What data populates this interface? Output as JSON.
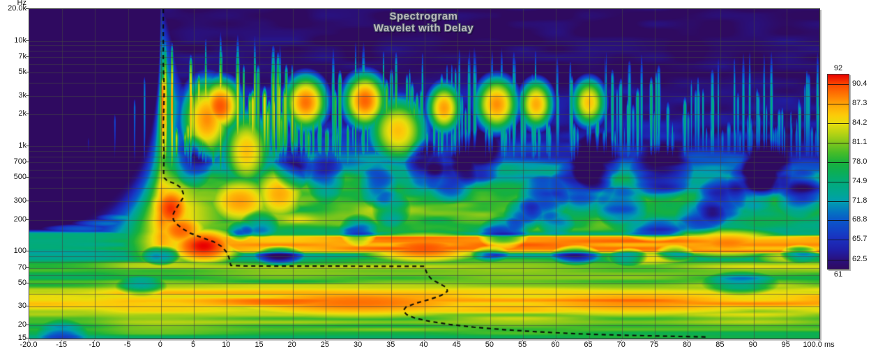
{
  "title": {
    "line1": "Spectrogram",
    "line2": "Wavelet with Delay"
  },
  "axes": {
    "x": {
      "unit": "ms",
      "min": -20,
      "max": 100,
      "grid_step_ms": 5,
      "tick_values": [
        -20,
        -15,
        -10,
        -5,
        0,
        5,
        10,
        15,
        20,
        25,
        30,
        35,
        40,
        45,
        50,
        55,
        60,
        65,
        70,
        75,
        80,
        85,
        90,
        95,
        100
      ],
      "tick_labels": [
        "-20.0",
        "-15",
        "-10",
        "-5",
        "0",
        "5",
        "10",
        "15",
        "20",
        "25",
        "30",
        "35",
        "40",
        "45",
        "50",
        "55",
        "60",
        "65",
        "70",
        "75",
        "80",
        "85",
        "90",
        "95",
        "100.0 ms"
      ]
    },
    "y": {
      "unit_label": "Hz",
      "min_hz": 15,
      "max_hz": 20000,
      "scale": "log",
      "tick_values": [
        20000,
        10000,
        7000,
        5000,
        3000,
        2000,
        1000,
        700,
        500,
        300,
        200,
        100,
        70,
        50,
        30,
        20,
        15
      ],
      "tick_labels": [
        "20.0k",
        "10k",
        "7k",
        "5k",
        "3k",
        "2k",
        "1k",
        "700",
        "500",
        "300",
        "200",
        "100",
        "70",
        "50",
        "30",
        "20",
        "15"
      ],
      "grid_lines_hz": [
        20,
        30,
        40,
        50,
        60,
        70,
        80,
        90,
        100,
        200,
        300,
        400,
        500,
        600,
        700,
        800,
        900,
        1000,
        2000,
        3000,
        4000,
        5000,
        6000,
        7000,
        8000,
        9000,
        10000
      ]
    }
  },
  "colorbar": {
    "max_label": "92",
    "min_label": "61",
    "min_db": 61,
    "max_db": 92,
    "tick_levels_db": [
      90.4,
      87.3,
      84.2,
      81.1,
      78.0,
      74.9,
      71.8,
      68.8,
      65.7,
      62.5
    ],
    "tick_labels": [
      "90.4",
      "87.3",
      "84.2",
      "81.1",
      "78.0",
      "74.9",
      "71.8",
      "68.8",
      "65.7",
      "62.5"
    ]
  },
  "palette_db_hex": [
    [
      61,
      "#2f0a60"
    ],
    [
      62.5,
      "#29117e"
    ],
    [
      64,
      "#1f1fa8"
    ],
    [
      65.7,
      "#1b2fbe"
    ],
    [
      67,
      "#1341c6"
    ],
    [
      68.8,
      "#0a58c8"
    ],
    [
      70,
      "#0472c2"
    ],
    [
      71.8,
      "#009fae"
    ],
    [
      73,
      "#00a694"
    ],
    [
      74.9,
      "#02ab78"
    ],
    [
      76.5,
      "#0cae54"
    ],
    [
      78,
      "#19b13b"
    ],
    [
      79.5,
      "#46bc28"
    ],
    [
      81.1,
      "#7fc61c"
    ],
    [
      82.5,
      "#b3d214"
    ],
    [
      84.2,
      "#e8de0c"
    ],
    [
      85.5,
      "#fccb08"
    ],
    [
      87.3,
      "#ffa406"
    ],
    [
      88.5,
      "#ff7e03"
    ],
    [
      90.4,
      "#fc4a00"
    ],
    [
      92,
      "#e90000"
    ]
  ],
  "chart_data": {
    "type": "heatmap",
    "subtype": "wavelet-spectrogram-with-delay",
    "title": "Spectrogram",
    "subtitle": "Wavelet with Delay",
    "x": {
      "label": "ms",
      "range": [
        -20,
        100
      ]
    },
    "y": {
      "label": "Hz",
      "range": [
        15,
        20000
      ],
      "scale": "log"
    },
    "z": {
      "label": "dB",
      "range": [
        61,
        92
      ]
    },
    "onset_time_ms": 0,
    "delay_contour_t_f": [
      [
        0.35,
        20000
      ],
      [
        0.35,
        6000
      ],
      [
        0.5,
        3500
      ],
      [
        0.35,
        1500
      ],
      [
        0.45,
        800
      ],
      [
        0.4,
        560
      ],
      [
        0.5,
        500
      ],
      [
        1.0,
        468
      ],
      [
        2.2,
        440
      ],
      [
        3.1,
        400
      ],
      [
        3.4,
        355
      ],
      [
        3.3,
        320
      ],
      [
        2.7,
        280
      ],
      [
        2.1,
        245
      ],
      [
        1.8,
        222
      ],
      [
        1.9,
        200
      ],
      [
        2.4,
        182
      ],
      [
        3.2,
        166
      ],
      [
        4.4,
        150
      ],
      [
        6.2,
        136
      ],
      [
        8.0,
        124
      ],
      [
        9.2,
        112
      ],
      [
        9.9,
        100
      ],
      [
        10.3,
        89
      ],
      [
        10.5,
        79
      ],
      [
        10.6,
        74
      ],
      [
        13,
        73
      ],
      [
        25,
        72.8
      ],
      [
        40,
        72.5
      ],
      [
        40.2,
        67
      ],
      [
        40.5,
        60
      ],
      [
        41.2,
        54
      ],
      [
        42.5,
        49
      ],
      [
        43.4,
        45.5
      ],
      [
        43.5,
        42
      ],
      [
        42.6,
        38.5
      ],
      [
        41,
        35.5
      ],
      [
        38.8,
        32.5
      ],
      [
        37.2,
        29.8
      ],
      [
        36.8,
        27.5
      ],
      [
        37.3,
        25.3
      ],
      [
        38.6,
        23.4
      ],
      [
        40.8,
        21.8
      ],
      [
        43.8,
        20.4
      ],
      [
        47.5,
        19.2
      ],
      [
        52,
        18.2
      ],
      [
        57.5,
        17.3
      ],
      [
        63.5,
        16.6
      ],
      [
        70,
        16.1
      ],
      [
        76.5,
        15.8
      ],
      [
        83,
        15.5
      ]
    ],
    "base_level_profile_f_db": [
      [
        15,
        77.5
      ],
      [
        16.5,
        78.5
      ],
      [
        18,
        79
      ],
      [
        20,
        80
      ],
      [
        22,
        80.5
      ],
      [
        25,
        81.5
      ],
      [
        28,
        84
      ],
      [
        31,
        86.5
      ],
      [
        34,
        87.5
      ],
      [
        37,
        86.5
      ],
      [
        40,
        85.5
      ],
      [
        43,
        84
      ],
      [
        46,
        81.5
      ],
      [
        49,
        80.5
      ],
      [
        52,
        79.5
      ],
      [
        56,
        79
      ],
      [
        60,
        79.5
      ],
      [
        64,
        80.5
      ],
      [
        69,
        81.5
      ],
      [
        73,
        82
      ],
      [
        77,
        80
      ],
      [
        81,
        78
      ],
      [
        86,
        76
      ],
      [
        91,
        75
      ],
      [
        97,
        74.5
      ],
      [
        105,
        75
      ],
      [
        115,
        75.5
      ],
      [
        125,
        75
      ],
      [
        135,
        74.5
      ],
      [
        145,
        74.5
      ],
      [
        155,
        76.5
      ],
      [
        185,
        78
      ],
      [
        240,
        79
      ],
      [
        330,
        78
      ],
      [
        430,
        75.5
      ],
      [
        560,
        73
      ],
      [
        700,
        70.5
      ],
      [
        900,
        67
      ],
      [
        1100,
        65
      ],
      [
        1500,
        63.5
      ],
      [
        2200,
        62.2
      ],
      [
        3000,
        61.8
      ],
      [
        20000,
        61.3
      ]
    ],
    "onset_peak_profile_f_db": [
      [
        85,
        84
      ],
      [
        100,
        86
      ],
      [
        120,
        87
      ],
      [
        140,
        87.5
      ],
      [
        155,
        87
      ],
      [
        200,
        88.5
      ],
      [
        260,
        88.5
      ],
      [
        330,
        87
      ],
      [
        420,
        85.5
      ],
      [
        520,
        83
      ],
      [
        650,
        81
      ],
      [
        800,
        80
      ],
      [
        1000,
        80.5
      ],
      [
        1400,
        81.5
      ],
      [
        2000,
        83
      ],
      [
        2600,
        83.5
      ],
      [
        3400,
        81
      ],
      [
        4500,
        78
      ],
      [
        6000,
        75.5
      ],
      [
        8000,
        73
      ],
      [
        11000,
        70
      ],
      [
        15000,
        67
      ],
      [
        20000,
        64.5
      ]
    ],
    "onset_decay_db_per_ms_f": [
      [
        85,
        0.9
      ],
      [
        400,
        1.0
      ],
      [
        600,
        2.5
      ],
      [
        1500,
        5
      ],
      [
        20000,
        6
      ]
    ],
    "pre_ring_spread_const_hz_ms": 2500,
    "delayed_bass_band": {
      "f_lo_hz": 93,
      "f_hi_hz": 148,
      "boost_db": 12.5,
      "arrival_ms_at_hi": 4.5,
      "arrival_ms_at_lo": 10.5
    },
    "striations": {
      "seed": 11,
      "count": 250,
      "bell_center_hz": 2600,
      "f_floor_hz": 600,
      "peak_base_db": 71.5,
      "peak_onset_extra_db": 11.5,
      "time_decay_ms": 28
    },
    "pre_noise_striations_t_ftop_db": [
      [
        -16,
        900,
        67
      ],
      [
        -11,
        1400,
        68
      ],
      [
        -7,
        2200,
        69
      ],
      [
        -13.5,
        700,
        66
      ],
      [
        -4,
        3000,
        70.5
      ],
      [
        -2.5,
        5000,
        71.5
      ],
      [
        -9,
        500,
        66.5
      ],
      [
        -18,
        400,
        65.5
      ]
    ],
    "hot_blobs_t_f_rt_rf_db": [
      [
        1.5,
        255,
        3,
        0.22,
        91
      ],
      [
        6.5,
        113,
        5,
        0.16,
        92
      ],
      [
        3,
        160,
        4,
        0.18,
        89.5
      ],
      [
        12,
        300,
        5,
        0.22,
        87.5
      ],
      [
        40,
        108,
        9,
        0.14,
        90
      ],
      [
        86,
        120,
        9,
        0.13,
        88.5
      ],
      [
        30,
        33,
        26,
        0.16,
        89
      ],
      [
        72,
        33,
        30,
        0.16,
        88
      ],
      [
        18,
        350,
        4,
        0.25,
        87
      ],
      [
        9,
        2400,
        2.5,
        0.2,
        90
      ],
      [
        22,
        2600,
        2.5,
        0.2,
        89
      ],
      [
        31,
        2700,
        2.5,
        0.2,
        89.5
      ],
      [
        51,
        2500,
        2.5,
        0.2,
        88
      ],
      [
        36,
        1400,
        3.5,
        0.25,
        86
      ],
      [
        13,
        900,
        3,
        0.3,
        86
      ],
      [
        7,
        1800,
        3,
        0.3,
        88
      ],
      [
        74,
        86,
        8,
        0.1,
        84.5
      ],
      [
        95,
        88,
        6,
        0.1,
        83
      ],
      [
        -8,
        185,
        6,
        0.05,
        70
      ],
      [
        -12,
        165,
        7,
        0.05,
        69
      ],
      [
        -5,
        210,
        5,
        0.05,
        72
      ],
      [
        57,
        2500,
        2,
        0.18,
        87
      ],
      [
        43,
        2300,
        2,
        0.18,
        87.5
      ],
      [
        65,
        2600,
        2,
        0.18,
        86
      ]
    ],
    "dark_holes_t_f_rt_rf_dropdb": [
      [
        0,
        92,
        3,
        0.1,
        13
      ],
      [
        18,
        91,
        4,
        0.1,
        13
      ],
      [
        63,
        92,
        4,
        0.1,
        12
      ],
      [
        71,
        89,
        3,
        0.09,
        10
      ],
      [
        97,
        95,
        3,
        0.09,
        10
      ],
      [
        -3,
        47,
        4,
        0.1,
        9
      ],
      [
        88,
        50,
        6,
        0.12,
        9
      ],
      [
        -15,
        16,
        4,
        0.16,
        8
      ],
      [
        52,
        150,
        4,
        0.16,
        10
      ],
      [
        58,
        320,
        4,
        0.22,
        11
      ],
      [
        64,
        430,
        5,
        0.26,
        10
      ],
      [
        70,
        260,
        4,
        0.22,
        10
      ],
      [
        44,
        510,
        4,
        0.26,
        10
      ],
      [
        76,
        555,
        5,
        0.28,
        11
      ],
      [
        30,
        160,
        3,
        0.16,
        9
      ],
      [
        85,
        305,
        4,
        0.24,
        10
      ],
      [
        92,
        610,
        4,
        0.28,
        10
      ],
      [
        97,
        355,
        4,
        0.24,
        10
      ],
      [
        25,
        505,
        3,
        0.26,
        9
      ],
      [
        35,
        252,
        3,
        0.18,
        8
      ],
      [
        15,
        182,
        3,
        0.14,
        8
      ],
      [
        5,
        705,
        3,
        0.26,
        9
      ],
      [
        48,
        755,
        4,
        0.28,
        10
      ],
      [
        66,
        710,
        4,
        0.28,
        10
      ],
      [
        12,
        156,
        2,
        0.1,
        8
      ],
      [
        75,
        162,
        5,
        0.12,
        8
      ],
      [
        40,
        655,
        3,
        0.26,
        9
      ],
      [
        55,
        222,
        3,
        0.18,
        8
      ],
      [
        82,
        212,
        4,
        0.18,
        8
      ],
      [
        90,
        425,
        4,
        0.26,
        9
      ],
      [
        20,
        640,
        3,
        0.24,
        9
      ],
      [
        33,
        415,
        3,
        0.22,
        8
      ],
      [
        60,
        185,
        3,
        0.12,
        8
      ],
      [
        50,
        95,
        3,
        0.08,
        8
      ],
      [
        78,
        97,
        3,
        0.08,
        8
      ]
    ],
    "mid_band_bump_hz": 2900,
    "grid": true,
    "legend_position": "right-colorbar"
  }
}
